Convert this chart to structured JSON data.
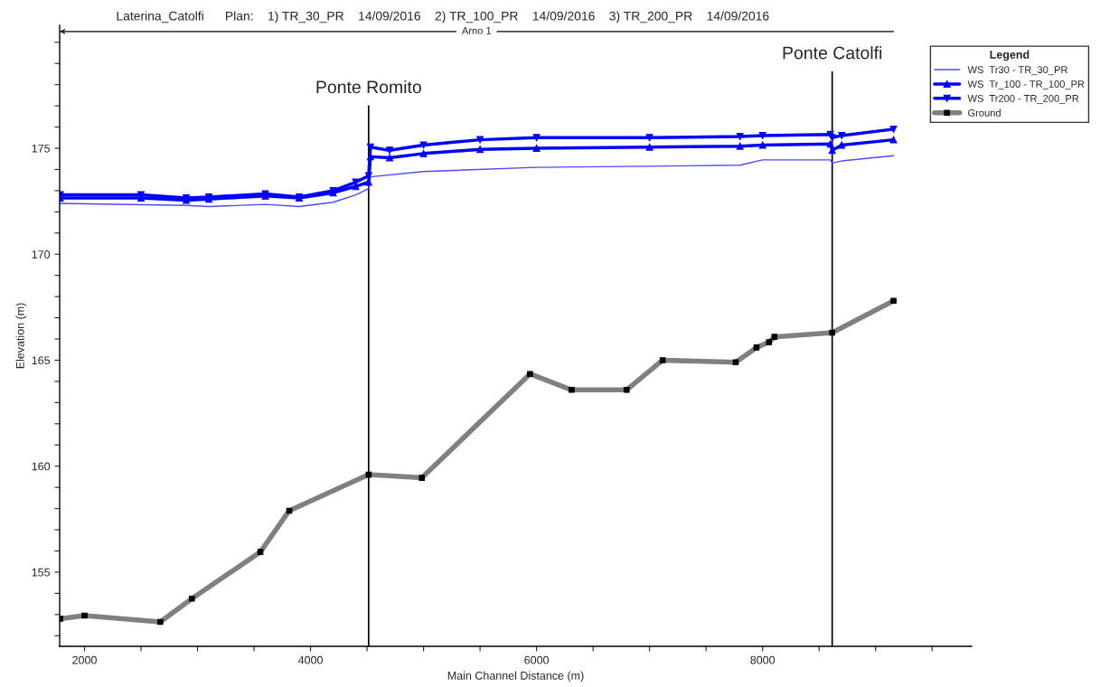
{
  "chart_data": {
    "type": "line",
    "title": "Laterina_Catolfi      Plan:    1) TR_30_PR    14/09/2016    2) TR_100_PR    14/09/2016    3) TR_200_PR    14/09/2016",
    "xlabel": "Main Channel Distance (m)",
    "ylabel": "Elevation (m)",
    "legend_title": "Legend",
    "series": [
      {
        "name": "WS  Tr30 - TR_30_PR",
        "color": "#4a4aff",
        "marker": "none",
        "x": [
          1785,
          2900,
          3100,
          3600,
          3900,
          4200,
          4400,
          4514,
          4530,
          5000,
          6000,
          7000,
          7800,
          8000,
          8600,
          8616,
          8700,
          9159
        ],
        "values": [
          172.4,
          172.3,
          172.25,
          172.35,
          172.25,
          172.45,
          172.8,
          173.1,
          173.65,
          173.9,
          174.1,
          174.15,
          174.2,
          174.45,
          174.45,
          174.3,
          174.4,
          174.65
        ]
      },
      {
        "name": "WS  Tr_100 - TR_100_PR",
        "color": "#0000ff",
        "marker": "triangle",
        "x": [
          1785,
          2500,
          2900,
          3100,
          3600,
          3900,
          4200,
          4400,
          4514,
          4530,
          4700,
          5000,
          5500,
          6000,
          7000,
          7800,
          8000,
          8600,
          8616,
          8700,
          9159
        ],
        "values": [
          172.65,
          172.65,
          172.55,
          172.6,
          172.75,
          172.65,
          172.9,
          173.2,
          173.4,
          174.6,
          174.55,
          174.75,
          174.95,
          175.0,
          175.05,
          175.1,
          175.15,
          175.2,
          174.9,
          175.15,
          175.4
        ]
      },
      {
        "name": "WS  Tr200 - TR_200_PR",
        "color": "#0000ff",
        "marker": "triangle_down",
        "x": [
          1785,
          2500,
          2900,
          3100,
          3600,
          3900,
          4200,
          4400,
          4514,
          4530,
          4700,
          5000,
          5500,
          6000,
          7000,
          7800,
          8000,
          8600,
          8616,
          8700,
          9159
        ],
        "values": [
          172.8,
          172.8,
          172.65,
          172.7,
          172.85,
          172.7,
          173.0,
          173.4,
          173.7,
          175.05,
          174.9,
          175.15,
          175.4,
          175.5,
          175.5,
          175.55,
          175.6,
          175.65,
          175.5,
          175.6,
          175.9
        ]
      },
      {
        "name": "Ground",
        "color": "#808080",
        "marker": "square",
        "x": [
          1785,
          2000,
          2670,
          2950,
          3556,
          3812,
          4514,
          4985,
          5942,
          6310,
          6797,
          7116,
          7762,
          7946,
          8057,
          8105,
          8616,
          9159
        ],
        "values": [
          152.8,
          152.95,
          152.65,
          153.75,
          155.95,
          157.9,
          159.6,
          159.45,
          164.35,
          163.6,
          163.6,
          165.0,
          164.9,
          165.6,
          165.85,
          166.1,
          166.3,
          167.8
        ]
      }
    ],
    "ref_lines": [
      {
        "axis": "x",
        "value": 4514,
        "label": "Ponte Romito",
        "color": "#000000"
      },
      {
        "axis": "x",
        "value": 8616,
        "label": "Ponte Catolfi",
        "color": "#000000"
      }
    ],
    "annotations": [
      "Arno 1"
    ],
    "xlim": [
      1780,
      9850
    ],
    "ylim": [
      151.5,
      180.8
    ],
    "xticks": [
      2000,
      {
        "value": 2500,
        "label": null
      },
      {
        "value": 3000,
        "label": null
      },
      {
        "value": 3500,
        "label": null
      },
      4000,
      {
        "value": 4500,
        "label": null
      },
      {
        "value": 5000,
        "label": null
      },
      {
        "value": 5500,
        "label": null
      },
      6000,
      {
        "value": 6500,
        "label": null
      },
      {
        "value": 7000,
        "label": null
      },
      {
        "value": 7500,
        "label": null
      },
      8000,
      {
        "value": 8500,
        "label": null
      },
      {
        "value": 9000,
        "label": null
      },
      {
        "value": 9500,
        "label": null
      }
    ],
    "yticks": [
      {
        "value": 152,
        "label": null
      },
      {
        "value": 153,
        "label": null
      },
      {
        "value": 154,
        "label": null
      },
      155,
      {
        "value": 156,
        "label": null
      },
      {
        "value": 157,
        "label": null
      },
      {
        "value": 158,
        "label": null
      },
      {
        "value": 159,
        "label": null
      },
      160,
      {
        "value": 161,
        "label": null
      },
      {
        "value": 162,
        "label": null
      },
      {
        "value": 163,
        "label": null
      },
      {
        "value": 164,
        "label": null
      },
      165,
      {
        "value": 166,
        "label": null
      },
      {
        "value": 167,
        "label": null
      },
      {
        "value": 168,
        "label": null
      },
      {
        "value": 169,
        "label": null
      },
      170,
      {
        "value": 171,
        "label": null
      },
      {
        "value": 172,
        "label": null
      },
      {
        "value": 173,
        "label": null
      },
      {
        "value": 174,
        "label": null
      },
      175,
      {
        "value": 176,
        "label": null
      },
      {
        "value": 177,
        "label": null
      },
      {
        "value": 178,
        "label": null
      },
      {
        "value": 179,
        "label": null
      },
      {
        "value": 180,
        "label": null
      }
    ],
    "grid": false,
    "legend": "top right",
    "line_style": "solid"
  }
}
